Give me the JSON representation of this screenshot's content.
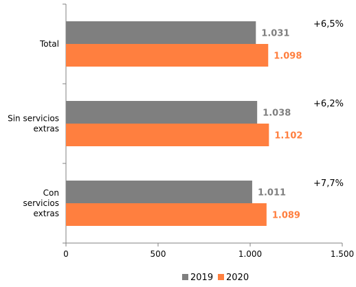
{
  "chart_data": {
    "type": "bar",
    "orientation": "horizontal",
    "categories": [
      [
        "Total"
      ],
      [
        "Sin servicios",
        "extras"
      ],
      [
        "Con",
        "servicios",
        "extras"
      ]
    ],
    "series": [
      {
        "name": "2019",
        "color": "#7f7f7f",
        "values": [
          1031,
          1038,
          1011
        ],
        "labels": [
          "1.031",
          "1.038",
          "1.011"
        ]
      },
      {
        "name": "2020",
        "color": "#ff7f3f",
        "values": [
          1098,
          1102,
          1089
        ],
        "labels": [
          "1.098",
          "1.102",
          "1.089"
        ]
      }
    ],
    "annotations": [
      "+6,5%",
      "+6,2%",
      "+7,7%"
    ],
    "xlim": [
      0,
      1500
    ],
    "xticks": [
      0,
      500,
      1000,
      1500
    ],
    "xtick_labels": [
      "0",
      "500",
      "1.000",
      "1.500"
    ],
    "label_colors": {
      "2019": "#7f7f7f",
      "2020": "#ff7f3f"
    },
    "legend": {
      "position": "bottom",
      "items": [
        "2019",
        "2020"
      ]
    },
    "grid": false
  }
}
